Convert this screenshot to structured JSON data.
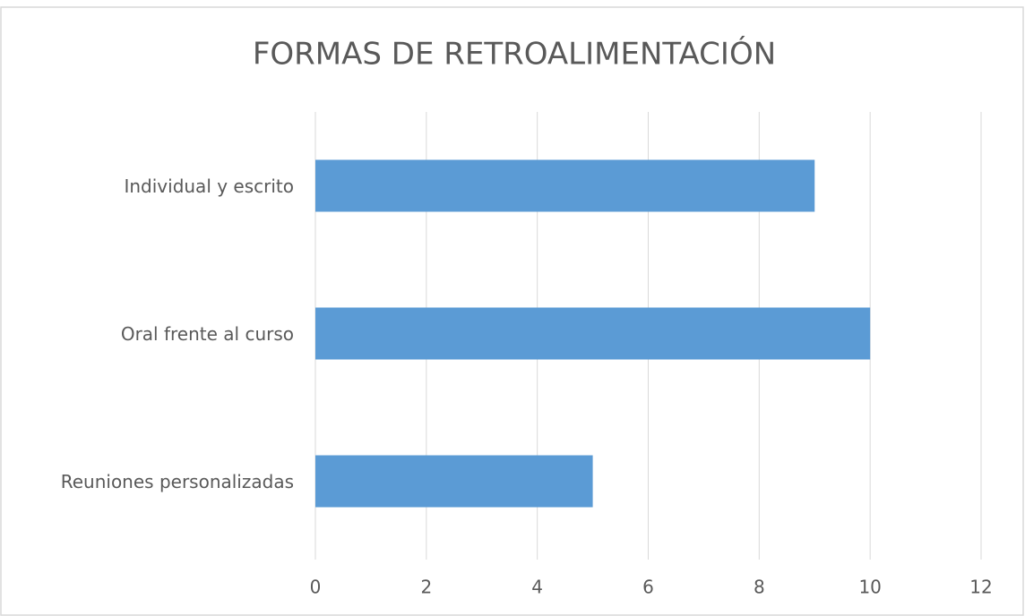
{
  "chart_data": {
    "type": "bar",
    "orientation": "horizontal",
    "title": "FORMAS DE RETROALIMENTACIÓN",
    "categories": [
      "Individual y escrito",
      "Oral frente al curso",
      "Reuniones personalizadas"
    ],
    "values": [
      9,
      10,
      5
    ],
    "color": "#5b9bd5",
    "xlim": [
      0,
      12
    ],
    "xticks": [
      0,
      2,
      4,
      6,
      8,
      10,
      12
    ],
    "grid": true
  }
}
